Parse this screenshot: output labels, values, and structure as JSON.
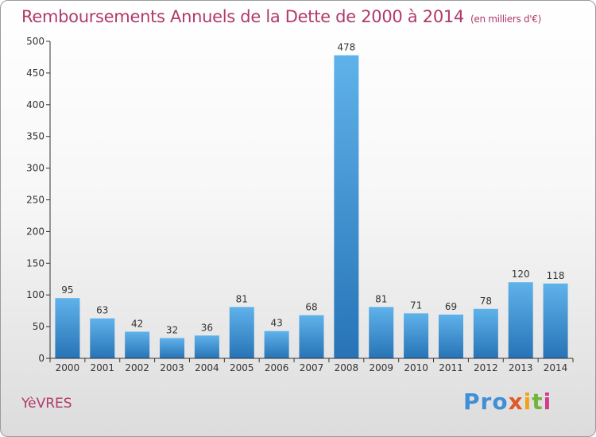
{
  "header": {
    "title": "Remboursements Annuels de la Dette de 2000 à 2014",
    "unit": "(en milliers d'€)"
  },
  "footer": {
    "town": "YèVRES",
    "logo": [
      "Pro",
      "x",
      "i",
      "t",
      "i"
    ]
  },
  "colors": {
    "title": "#b03a6a",
    "bar_light": "#5aaee8",
    "bar_dark": "#2a78bb",
    "axis": "#333333"
  },
  "chart_data": {
    "type": "bar",
    "categories": [
      "2000",
      "2001",
      "2002",
      "2003",
      "2004",
      "2005",
      "2006",
      "2007",
      "2008",
      "2009",
      "2010",
      "2011",
      "2012",
      "2013",
      "2014"
    ],
    "values": [
      95,
      63,
      42,
      32,
      36,
      81,
      43,
      68,
      478,
      81,
      71,
      69,
      78,
      120,
      118
    ],
    "ylim": [
      0,
      500
    ],
    "yticks": [
      0,
      50,
      100,
      150,
      200,
      250,
      300,
      350,
      400,
      450,
      500
    ],
    "grid": false,
    "legend": "none"
  }
}
